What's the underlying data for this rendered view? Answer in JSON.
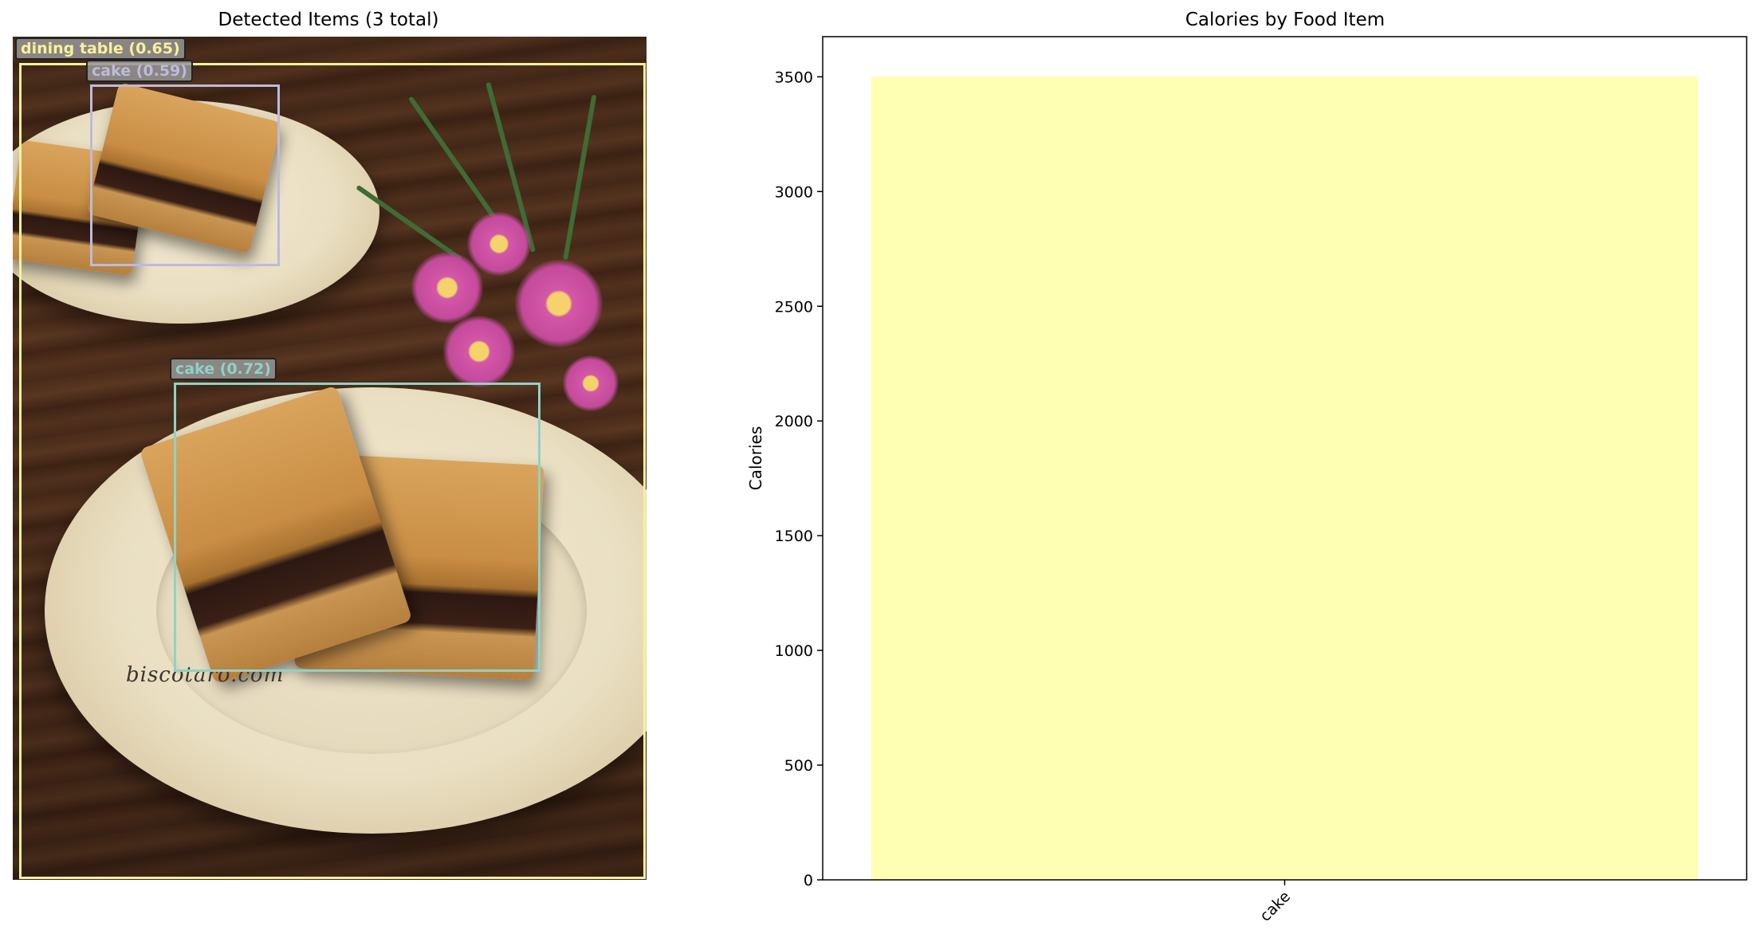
{
  "left_panel": {
    "title": "Detected Items (3 total)",
    "watermark": "biscotaro.com",
    "detections": [
      {
        "label": "dining table (0.65)",
        "color": "#f8f19a"
      },
      {
        "label": "cake (0.59)",
        "color": "#bebada"
      },
      {
        "label": "cake (0.72)",
        "color": "#8dd3c7"
      }
    ]
  },
  "chart_data": {
    "type": "bar",
    "title": "Calories by Food Item",
    "xlabel": "",
    "ylabel": "Calories",
    "categories": [
      "cake"
    ],
    "values": [
      3500
    ],
    "ylim": [
      0,
      3675
    ],
    "yticks": [
      0,
      500,
      1000,
      1500,
      2000,
      2500,
      3000,
      3500
    ],
    "bar_color": "#ffffb3",
    "grid": false,
    "legend": "none"
  }
}
